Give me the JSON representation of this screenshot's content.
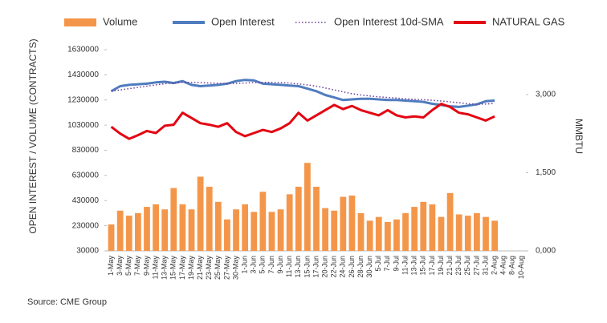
{
  "chart_data": {
    "type": "combo",
    "y_axis_label": "OPEN INTEREST / VOLUME (CONTRACTS)",
    "y2_axis_label": "MMBTU",
    "source": "Source: CME Group",
    "categories": [
      "1-May",
      "3-May",
      "5-May",
      "7-May",
      "9-May",
      "11-May",
      "13-May",
      "15-May",
      "17-May",
      "19-May",
      "21-May",
      "23-May",
      "25-May",
      "27-May",
      "30-May",
      "1-Jun",
      "3-Jun",
      "5-Jun",
      "7-Jun",
      "9-Jun",
      "11-Jun",
      "13-Jun",
      "15-Jun",
      "17-Jun",
      "20-Jun",
      "22-Jun",
      "24-Jun",
      "26-Jun",
      "28-Jun",
      "30-Jun",
      "5-Jul",
      "7-Jul",
      "9-Jul",
      "11-Jul",
      "13-Jul",
      "15-Jul",
      "17-Jul",
      "19-Jul",
      "21-Jul",
      "23-Jul",
      "25-Jul",
      "27-Jul",
      "31-Jul",
      "2-Aug",
      "4-Aug",
      "8-Aug",
      "10-Aug"
    ],
    "ylim": [
      30000,
      1630000
    ],
    "yticks": [
      30000,
      230000,
      430000,
      630000,
      830000,
      1030000,
      1230000,
      1430000,
      1630000
    ],
    "y2lim": [
      0,
      3860
    ],
    "y2ticks": [
      {
        "value": 0,
        "label": "0,000"
      },
      {
        "value": 1500,
        "label": "1,500"
      },
      {
        "value": 3000,
        "label": "3,000"
      }
    ],
    "series": [
      {
        "name": "Volume",
        "kind": "bar",
        "color": "#f4964a",
        "values": [
          240000,
          350000,
          310000,
          330000,
          380000,
          400000,
          360000,
          530000,
          400000,
          360000,
          620000,
          540000,
          420000,
          280000,
          360000,
          400000,
          340000,
          500000,
          340000,
          360000,
          480000,
          540000,
          730000,
          540000,
          370000,
          350000,
          460000,
          470000,
          330000,
          270000,
          300000,
          260000,
          280000,
          330000,
          380000,
          420000,
          400000,
          300000,
          490000,
          320000,
          310000,
          330000,
          300000,
          270000,
          null,
          null,
          null
        ]
      },
      {
        "name": "Open Interest",
        "kind": "line",
        "color": "#4f7cbe",
        "values": [
          1300000,
          1340000,
          1350000,
          1355000,
          1360000,
          1370000,
          1375000,
          1365000,
          1380000,
          1350000,
          1340000,
          1345000,
          1350000,
          1360000,
          1380000,
          1390000,
          1385000,
          1360000,
          1355000,
          1350000,
          1345000,
          1340000,
          1320000,
          1300000,
          1270000,
          1250000,
          1230000,
          1235000,
          1240000,
          1240000,
          1235000,
          1230000,
          1230000,
          1225000,
          1220000,
          1215000,
          1200000,
          1190000,
          1180000,
          1175000,
          1185000,
          1195000,
          1220000,
          1225000,
          null,
          null,
          null
        ]
      },
      {
        "name": "Open Interest 10d-SMA",
        "kind": "dotted",
        "color": "#6a3d9a",
        "values": [
          1300000,
          1310000,
          1320000,
          1330000,
          1340000,
          1350000,
          1360000,
          1365000,
          1370000,
          1370000,
          1368000,
          1365000,
          1362000,
          1360000,
          1362000,
          1365000,
          1368000,
          1370000,
          1370000,
          1368000,
          1365000,
          1358000,
          1350000,
          1340000,
          1325000,
          1310000,
          1295000,
          1280000,
          1270000,
          1262000,
          1255000,
          1250000,
          1245000,
          1240000,
          1235000,
          1232000,
          1228000,
          1222000,
          1215000,
          1208000,
          1200000,
          1196000,
          1198000,
          1202000,
          null,
          null,
          null
        ]
      },
      {
        "name": "NATURAL GAS",
        "kind": "line",
        "axis": "y2",
        "color": "#e30613",
        "values": [
          2380,
          2250,
          2150,
          2220,
          2300,
          2260,
          2400,
          2420,
          2650,
          2550,
          2450,
          2420,
          2380,
          2450,
          2280,
          2200,
          2260,
          2320,
          2280,
          2350,
          2450,
          2650,
          2500,
          2600,
          2700,
          2800,
          2720,
          2780,
          2700,
          2650,
          2600,
          2700,
          2600,
          2560,
          2580,
          2560,
          2700,
          2820,
          2760,
          2650,
          2620,
          2560,
          2500,
          2580,
          null,
          null,
          null
        ]
      }
    ]
  }
}
